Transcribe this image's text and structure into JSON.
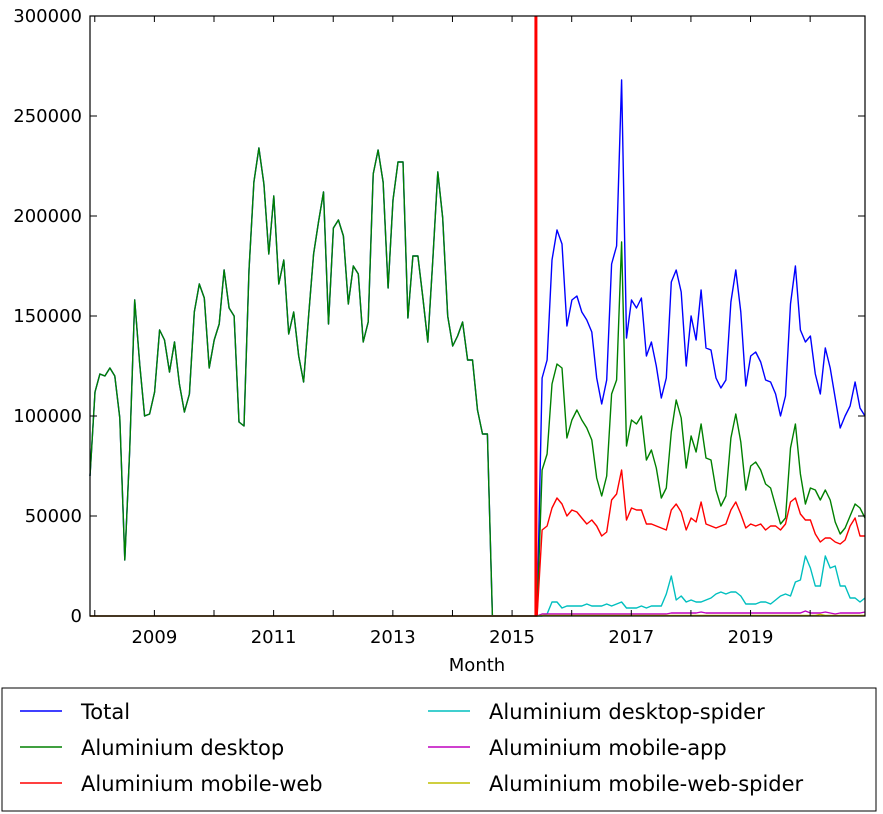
{
  "chart_data": {
    "type": "line",
    "title": "",
    "xlabel": "Month",
    "ylabel": "",
    "x_start": "2007-12",
    "x_end": "2020-12",
    "x_step": "month",
    "xlim": [
      2007.92,
      2020.92
    ],
    "ylim": [
      0,
      300000
    ],
    "x_ticks": [
      "2009",
      "2011",
      "2013",
      "2015",
      "2017",
      "2019"
    ],
    "x_tick_values": [
      2009,
      2011,
      2013,
      2015,
      2017,
      2019
    ],
    "y_ticks": [
      "0",
      "50000",
      "100000",
      "150000",
      "200000",
      "250000",
      "300000"
    ],
    "y_tick_values": [
      0,
      50000,
      100000,
      150000,
      200000,
      250000,
      300000
    ],
    "grid": false,
    "legend_placement": "below",
    "vline": {
      "x": 2015.4,
      "color": "#ff0000"
    },
    "series": [
      {
        "name": "Total",
        "color": "#0000ff",
        "values": [
          70000,
          112000,
          121000,
          120000,
          124000,
          120000,
          99000,
          28000,
          83000,
          158000,
          126000,
          100000,
          101000,
          112000,
          143000,
          138000,
          122000,
          137000,
          116000,
          102000,
          111000,
          152000,
          166000,
          159000,
          124000,
          138000,
          146000,
          173000,
          154000,
          150000,
          97000,
          95000,
          173000,
          217000,
          234000,
          216000,
          181000,
          210000,
          166000,
          178000,
          141000,
          152000,
          130000,
          117000,
          150000,
          181000,
          197000,
          212000,
          146000,
          194000,
          198000,
          190000,
          156000,
          175000,
          171000,
          137000,
          147000,
          221000,
          233000,
          217000,
          164000,
          208000,
          227000,
          227000,
          149000,
          180000,
          180000,
          159000,
          137000,
          178000,
          222000,
          199000,
          150000,
          135000,
          140000,
          147000,
          128000,
          128000,
          103000,
          91000,
          91000,
          0,
          0,
          0,
          0,
          0,
          0,
          0,
          0,
          0,
          0,
          119000,
          128000,
          178000,
          193000,
          186000,
          145000,
          158000,
          160000,
          152000,
          148000,
          142000,
          119000,
          106000,
          118000,
          176000,
          185000,
          268000,
          139000,
          158000,
          154000,
          159000,
          130000,
          137000,
          125000,
          109000,
          119000,
          167000,
          173000,
          162000,
          125000,
          150000,
          138000,
          163000,
          134000,
          133000,
          119000,
          114000,
          118000,
          157000,
          173000,
          152000,
          115000,
          130000,
          132000,
          127000,
          118000,
          117000,
          111000,
          100000,
          110000,
          156000,
          175000,
          143000,
          137000,
          140000,
          121000,
          111000,
          134000,
          124000,
          109000,
          94000,
          100000,
          105000,
          117000,
          104000,
          100000
        ]
      },
      {
        "name": "Aluminium desktop",
        "color": "#008000",
        "values": [
          70000,
          112000,
          121000,
          120000,
          124000,
          120000,
          99000,
          28000,
          83000,
          158000,
          126000,
          100000,
          101000,
          112000,
          143000,
          138000,
          122000,
          137000,
          116000,
          102000,
          111000,
          152000,
          166000,
          159000,
          124000,
          138000,
          146000,
          173000,
          154000,
          150000,
          97000,
          95000,
          173000,
          217000,
          234000,
          216000,
          181000,
          210000,
          166000,
          178000,
          141000,
          152000,
          130000,
          117000,
          150000,
          181000,
          197000,
          212000,
          146000,
          194000,
          198000,
          190000,
          156000,
          175000,
          171000,
          137000,
          147000,
          221000,
          233000,
          217000,
          164000,
          208000,
          227000,
          227000,
          149000,
          180000,
          180000,
          159000,
          137000,
          178000,
          222000,
          199000,
          150000,
          135000,
          140000,
          147000,
          128000,
          128000,
          103000,
          91000,
          91000,
          0,
          0,
          0,
          0,
          0,
          0,
          0,
          0,
          0,
          0,
          73000,
          81000,
          116000,
          126000,
          124000,
          89000,
          98000,
          103000,
          98000,
          94000,
          88000,
          69000,
          60000,
          70000,
          111000,
          118000,
          187000,
          85000,
          98000,
          96000,
          100000,
          78000,
          83000,
          74000,
          59000,
          64000,
          92000,
          108000,
          99000,
          74000,
          90000,
          82000,
          96000,
          79000,
          78000,
          63000,
          55000,
          60000,
          89000,
          101000,
          87000,
          63000,
          75000,
          77000,
          73000,
          66000,
          64000,
          55000,
          46000,
          49000,
          84000,
          96000,
          71000,
          56000,
          64000,
          63000,
          58000,
          63000,
          58000,
          47000,
          41000,
          44000,
          50000,
          56000,
          54000,
          49000
        ]
      },
      {
        "name": "Aluminium mobile-web",
        "color": "#ff0000",
        "values": [
          0,
          0,
          0,
          0,
          0,
          0,
          0,
          0,
          0,
          0,
          0,
          0,
          0,
          0,
          0,
          0,
          0,
          0,
          0,
          0,
          0,
          0,
          0,
          0,
          0,
          0,
          0,
          0,
          0,
          0,
          0,
          0,
          0,
          0,
          0,
          0,
          0,
          0,
          0,
          0,
          0,
          0,
          0,
          0,
          0,
          0,
          0,
          0,
          0,
          0,
          0,
          0,
          0,
          0,
          0,
          0,
          0,
          0,
          0,
          0,
          0,
          0,
          0,
          0,
          0,
          0,
          0,
          0,
          0,
          0,
          0,
          0,
          0,
          0,
          0,
          0,
          0,
          0,
          0,
          0,
          0,
          0,
          0,
          0,
          0,
          0,
          0,
          0,
          0,
          0,
          0,
          43000,
          45000,
          54000,
          59000,
          56000,
          50000,
          53000,
          52000,
          49000,
          46000,
          48000,
          45000,
          40000,
          42000,
          58000,
          61000,
          73000,
          48000,
          54000,
          53000,
          53000,
          46000,
          46000,
          45000,
          44000,
          43000,
          53000,
          56000,
          52000,
          43000,
          49000,
          47000,
          57000,
          46000,
          45000,
          44000,
          45000,
          46000,
          53000,
          57000,
          51000,
          44000,
          46000,
          45000,
          46000,
          43000,
          45000,
          45000,
          43000,
          46000,
          57000,
          59000,
          51000,
          48000,
          48000,
          41000,
          37000,
          39000,
          39000,
          37000,
          36000,
          38000,
          45000,
          49000,
          40000,
          40000
        ]
      },
      {
        "name": "Aluminium desktop-spider",
        "color": "#00bfbf",
        "values": [
          0,
          0,
          0,
          0,
          0,
          0,
          0,
          0,
          0,
          0,
          0,
          0,
          0,
          0,
          0,
          0,
          0,
          0,
          0,
          0,
          0,
          0,
          0,
          0,
          0,
          0,
          0,
          0,
          0,
          0,
          0,
          0,
          0,
          0,
          0,
          0,
          0,
          0,
          0,
          0,
          0,
          0,
          0,
          0,
          0,
          0,
          0,
          0,
          0,
          0,
          0,
          0,
          0,
          0,
          0,
          0,
          0,
          0,
          0,
          0,
          0,
          0,
          0,
          0,
          0,
          0,
          0,
          0,
          0,
          0,
          0,
          0,
          0,
          0,
          0,
          0,
          0,
          0,
          0,
          0,
          0,
          0,
          0,
          0,
          0,
          0,
          0,
          0,
          0,
          0,
          0,
          0,
          1000,
          7000,
          7000,
          4000,
          5000,
          5000,
          5000,
          5000,
          6000,
          5000,
          5000,
          5000,
          6000,
          5000,
          6000,
          7000,
          4000,
          4000,
          4000,
          5000,
          4000,
          5000,
          5000,
          5000,
          11000,
          20000,
          8000,
          10000,
          7000,
          8000,
          7000,
          7000,
          8000,
          9000,
          11000,
          12000,
          11000,
          12000,
          12000,
          10000,
          6000,
          6000,
          6000,
          7000,
          7000,
          6000,
          8000,
          10000,
          11000,
          10000,
          17000,
          18000,
          30000,
          24000,
          15000,
          15000,
          30000,
          24000,
          25000,
          15000,
          15000,
          9000,
          9000,
          7000,
          9000
        ]
      },
      {
        "name": "Aluminium mobile-app",
        "color": "#bf00bf",
        "values": [
          0,
          0,
          0,
          0,
          0,
          0,
          0,
          0,
          0,
          0,
          0,
          0,
          0,
          0,
          0,
          0,
          0,
          0,
          0,
          0,
          0,
          0,
          0,
          0,
          0,
          0,
          0,
          0,
          0,
          0,
          0,
          0,
          0,
          0,
          0,
          0,
          0,
          0,
          0,
          0,
          0,
          0,
          0,
          0,
          0,
          0,
          0,
          0,
          0,
          0,
          0,
          0,
          0,
          0,
          0,
          0,
          0,
          0,
          0,
          0,
          0,
          0,
          0,
          0,
          0,
          0,
          0,
          0,
          0,
          0,
          0,
          0,
          0,
          0,
          0,
          0,
          0,
          0,
          0,
          0,
          0,
          0,
          0,
          0,
          0,
          0,
          0,
          0,
          0,
          0,
          0,
          1000,
          1000,
          1000,
          1000,
          1000,
          1000,
          1000,
          1000,
          1000,
          1000,
          1000,
          1000,
          1000,
          1000,
          1000,
          1000,
          1000,
          1000,
          1000,
          1000,
          1000,
          1000,
          1000,
          1000,
          1000,
          1000,
          1500,
          1500,
          1500,
          1500,
          1500,
          1500,
          2000,
          1500,
          1500,
          1500,
          1500,
          1500,
          1500,
          1500,
          1500,
          1500,
          1500,
          1500,
          1500,
          1500,
          1500,
          1500,
          1500,
          1500,
          1500,
          1500,
          1500,
          2500,
          1500,
          1500,
          1500,
          2000,
          1500,
          1000,
          1500,
          1500,
          1500,
          1500,
          1500,
          2000
        ]
      },
      {
        "name": "Aluminium mobile-web-spider",
        "color": "#bfbf00",
        "values": [
          0,
          0,
          0,
          0,
          0,
          0,
          0,
          0,
          0,
          0,
          0,
          0,
          0,
          0,
          0,
          0,
          0,
          0,
          0,
          0,
          0,
          0,
          0,
          0,
          0,
          0,
          0,
          0,
          0,
          0,
          0,
          0,
          0,
          0,
          0,
          0,
          0,
          0,
          0,
          0,
          0,
          0,
          0,
          0,
          0,
          0,
          0,
          0,
          0,
          0,
          0,
          0,
          0,
          0,
          0,
          0,
          0,
          0,
          0,
          0,
          0,
          0,
          0,
          0,
          0,
          0,
          0,
          0,
          0,
          0,
          0,
          0,
          0,
          0,
          0,
          0,
          0,
          0,
          0,
          0,
          0,
          0,
          0,
          0,
          0,
          0,
          0,
          0,
          0,
          0,
          0,
          300,
          300,
          300,
          300,
          300,
          300,
          300,
          300,
          300,
          300,
          300,
          300,
          300,
          300,
          300,
          300,
          300,
          300,
          300,
          300,
          300,
          300,
          300,
          300,
          300,
          300,
          300,
          300,
          300,
          300,
          300,
          300,
          300,
          300,
          300,
          300,
          300,
          300,
          300,
          300,
          300,
          300,
          300,
          300,
          300,
          300,
          300,
          300,
          300,
          300,
          300,
          300,
          300,
          300,
          300,
          300,
          800,
          300,
          300,
          300,
          300,
          300,
          300,
          300,
          300,
          300
        ]
      }
    ]
  }
}
